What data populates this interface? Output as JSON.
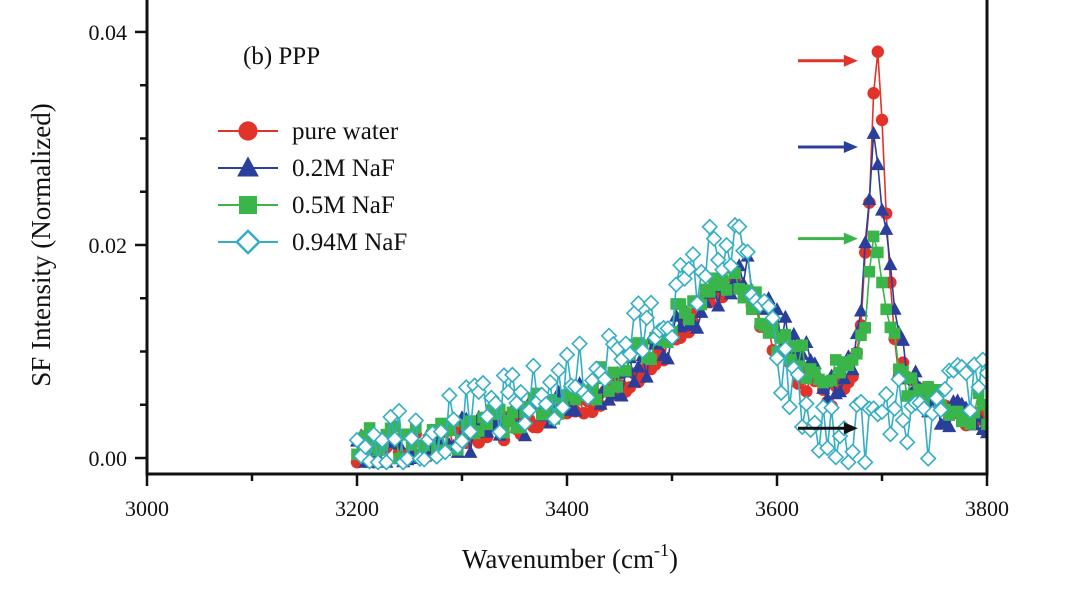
{
  "chart_data": {
    "type": "line",
    "panel_label": "(b)  PPP",
    "xlabel": {
      "main": "Wavenumber (cm",
      "sup": "-1",
      "tail": ")"
    },
    "ylabel": "SF Intensity (Normalized)",
    "xlim": [
      3000,
      3800
    ],
    "ylim": [
      -0.0015,
      0.043
    ],
    "x_ticks": [
      3000,
      3200,
      3400,
      3600,
      3800
    ],
    "y_ticks": [
      0.0,
      0.02,
      0.04
    ],
    "y_tick_labels": [
      "0.00",
      "0.02",
      "0.04"
    ],
    "grid": false,
    "legend_position": "upper-left",
    "series": [
      {
        "name": "pure water",
        "color": "#e2332b",
        "marker": "circle",
        "anchors": [
          [
            3200,
            0.0005
          ],
          [
            3250,
            0.001
          ],
          [
            3300,
            0.0018
          ],
          [
            3350,
            0.003
          ],
          [
            3400,
            0.0045
          ],
          [
            3440,
            0.006
          ],
          [
            3480,
            0.009
          ],
          [
            3520,
            0.013
          ],
          [
            3550,
            0.016
          ],
          [
            3570,
            0.016
          ],
          [
            3590,
            0.012
          ],
          [
            3620,
            0.008
          ],
          [
            3650,
            0.0055
          ],
          [
            3670,
            0.0075
          ],
          [
            3680,
            0.013
          ],
          [
            3685,
            0.02
          ],
          [
            3690,
            0.0285
          ],
          [
            3693,
            0.0373
          ],
          [
            3697,
            0.0375
          ],
          [
            3702,
            0.027
          ],
          [
            3708,
            0.016
          ],
          [
            3715,
            0.009
          ],
          [
            3730,
            0.006
          ],
          [
            3760,
            0.004
          ],
          [
            3800,
            0.0035
          ]
        ],
        "jitter": 0.0012
      },
      {
        "name": "0.2M NaF",
        "color": "#2a3f9b",
        "marker": "triangle",
        "anchors": [
          [
            3200,
            0.0008
          ],
          [
            3250,
            0.0012
          ],
          [
            3300,
            0.002
          ],
          [
            3350,
            0.0035
          ],
          [
            3400,
            0.005
          ],
          [
            3440,
            0.0065
          ],
          [
            3480,
            0.0095
          ],
          [
            3520,
            0.0135
          ],
          [
            3550,
            0.016
          ],
          [
            3570,
            0.018
          ],
          [
            3590,
            0.014
          ],
          [
            3620,
            0.01
          ],
          [
            3650,
            0.007
          ],
          [
            3670,
            0.009
          ],
          [
            3680,
            0.014
          ],
          [
            3686,
            0.022
          ],
          [
            3692,
            0.0293
          ],
          [
            3697,
            0.0275
          ],
          [
            3702,
            0.021
          ],
          [
            3708,
            0.019
          ],
          [
            3715,
            0.012
          ],
          [
            3730,
            0.007
          ],
          [
            3760,
            0.0045
          ],
          [
            3800,
            0.004
          ]
        ],
        "jitter": 0.0018
      },
      {
        "name": "0.5M NaF",
        "color": "#39b54a",
        "marker": "square",
        "anchors": [
          [
            3200,
            0.0012
          ],
          [
            3250,
            0.0015
          ],
          [
            3300,
            0.0022
          ],
          [
            3350,
            0.0038
          ],
          [
            3400,
            0.0055
          ],
          [
            3440,
            0.0075
          ],
          [
            3480,
            0.0105
          ],
          [
            3520,
            0.0145
          ],
          [
            3548,
            0.0175
          ],
          [
            3565,
            0.0165
          ],
          [
            3590,
            0.0125
          ],
          [
            3620,
            0.0095
          ],
          [
            3650,
            0.0075
          ],
          [
            3670,
            0.008
          ],
          [
            3680,
            0.011
          ],
          [
            3686,
            0.014
          ],
          [
            3692,
            0.0205
          ],
          [
            3698,
            0.0165
          ],
          [
            3705,
            0.013
          ],
          [
            3715,
            0.009
          ],
          [
            3730,
            0.006
          ],
          [
            3760,
            0.005
          ],
          [
            3800,
            0.0045
          ]
        ],
        "jitter": 0.0016
      },
      {
        "name": "0.94M NaF",
        "color": "#33aec4",
        "marker": "diamond",
        "anchors": [
          [
            3200,
            0.0018
          ],
          [
            3250,
            0.0025
          ],
          [
            3300,
            0.0035
          ],
          [
            3350,
            0.005
          ],
          [
            3400,
            0.007
          ],
          [
            3440,
            0.0095
          ],
          [
            3480,
            0.0125
          ],
          [
            3520,
            0.0165
          ],
          [
            3545,
            0.0205
          ],
          [
            3570,
            0.0185
          ],
          [
            3600,
            0.009
          ],
          [
            3630,
            0.0035
          ],
          [
            3660,
            0.0015
          ],
          [
            3680,
            0.0025
          ],
          [
            3700,
            0.0035
          ],
          [
            3720,
            0.0045
          ],
          [
            3740,
            0.002
          ],
          [
            3760,
            0.005
          ],
          [
            3780,
            0.0065
          ],
          [
            3800,
            0.0085
          ]
        ],
        "jitter": 0.0032
      }
    ],
    "arrows": [
      {
        "color": "#e2332b",
        "direction": "right",
        "y": 0.0373,
        "x_start": 3620,
        "x_end": 3677
      },
      {
        "color": "#2a3f9b",
        "direction": "right",
        "y": 0.0292,
        "x_start": 3620,
        "x_end": 3677
      },
      {
        "color": "#39b54a",
        "direction": "right",
        "y": 0.0206,
        "x_start": 3620,
        "x_end": 3677
      },
      {
        "color": "#111111",
        "direction": "right",
        "y": 0.0028,
        "x_start": 3620,
        "x_end": 3677
      }
    ],
    "x_step": 4
  }
}
